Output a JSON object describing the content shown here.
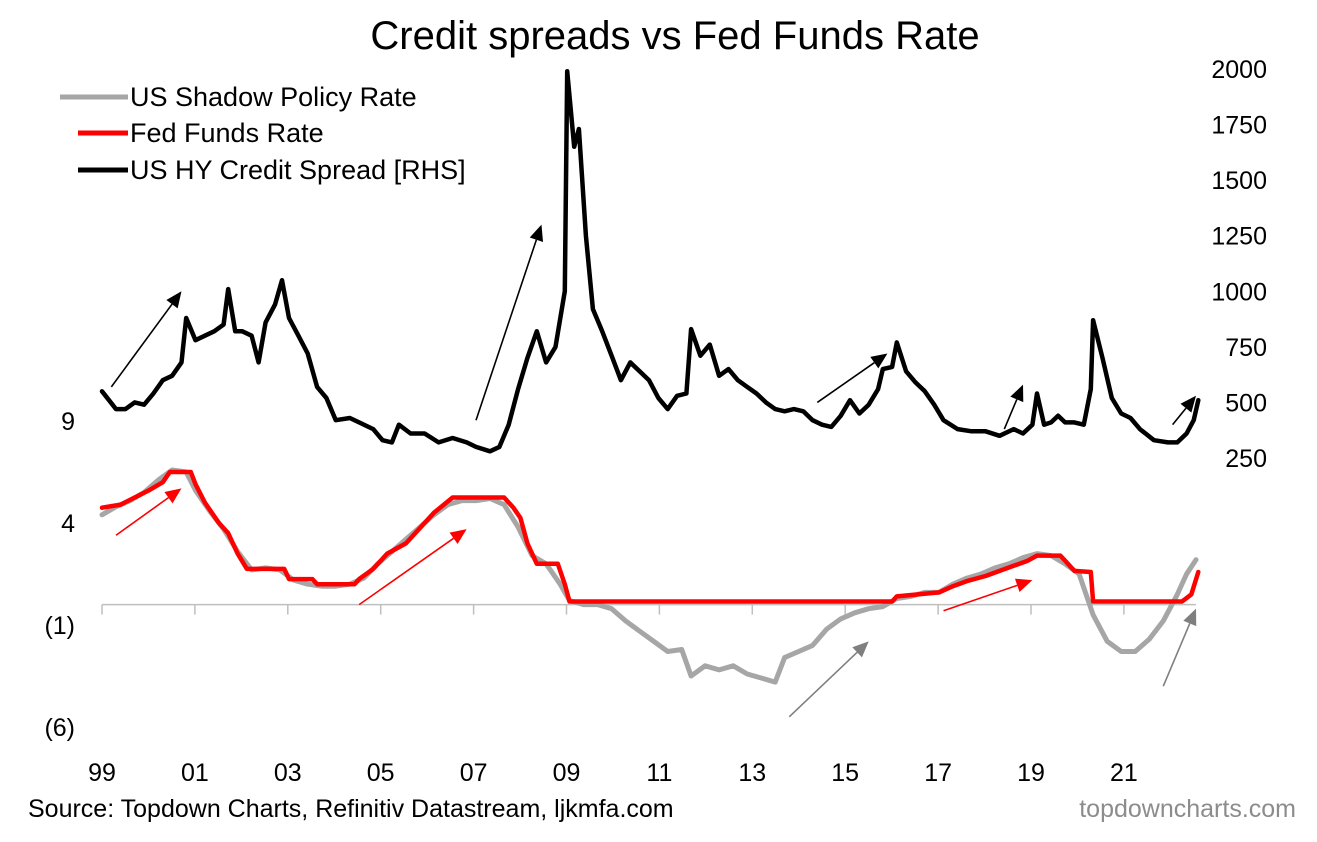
{
  "chart_data": {
    "type": "line",
    "title": "Credit spreads vs Fed Funds Rate",
    "source": "Source: Topdown Charts, Refinitiv Datastream, ljkmfa.com",
    "watermark": "topdowncharts.com",
    "x_ticks": [
      "99",
      "01",
      "03",
      "05",
      "07",
      "09",
      "11",
      "13",
      "15",
      "17",
      "19",
      "21"
    ],
    "x_range": [
      1999.0,
      2022.4
    ],
    "left_axis": {
      "ticks": [
        "9",
        "4",
        "(1)",
        "(6)"
      ],
      "tick_values": [
        9,
        4,
        -1,
        -6
      ],
      "range": [
        -6,
        9
      ]
    },
    "right_axis": {
      "ticks": [
        "2000",
        "1750",
        "1500",
        "1250",
        "1000",
        "750",
        "500",
        "250"
      ],
      "tick_values": [
        2000,
        1750,
        1500,
        1250,
        1000,
        750,
        500,
        250
      ],
      "range": [
        250,
        2000
      ]
    },
    "legend_position": "top-left",
    "colors": {
      "shadow": "#a6a6a6",
      "fed": "#ff0000",
      "hy": "#000000",
      "arrow_black": "#000000",
      "arrow_red": "#ff0000",
      "arrow_gray": "#7f7f7f"
    },
    "series": [
      {
        "name": "US Shadow Policy Rate",
        "axis": "left",
        "color": "#a6a6a6",
        "points": [
          [
            1999.0,
            4.4
          ],
          [
            1999.3,
            4.8
          ],
          [
            1999.6,
            5.1
          ],
          [
            1999.9,
            5.5
          ],
          [
            2000.2,
            6.1
          ],
          [
            2000.5,
            6.6
          ],
          [
            2000.8,
            6.5
          ],
          [
            2001.0,
            5.6
          ],
          [
            2001.3,
            4.6
          ],
          [
            2001.6,
            3.7
          ],
          [
            2001.9,
            2.6
          ],
          [
            2002.2,
            1.7
          ],
          [
            2002.5,
            1.8
          ],
          [
            2002.8,
            1.7
          ],
          [
            2003.1,
            1.2
          ],
          [
            2003.4,
            1.0
          ],
          [
            2003.7,
            0.9
          ],
          [
            2004.0,
            0.9
          ],
          [
            2004.3,
            1.0
          ],
          [
            2004.6,
            1.3
          ],
          [
            2004.9,
            2.0
          ],
          [
            2005.2,
            2.6
          ],
          [
            2005.5,
            3.2
          ],
          [
            2005.8,
            3.8
          ],
          [
            2006.1,
            4.4
          ],
          [
            2006.4,
            4.9
          ],
          [
            2006.7,
            5.1
          ],
          [
            2007.0,
            5.1
          ],
          [
            2007.3,
            5.2
          ],
          [
            2007.6,
            4.9
          ],
          [
            2007.9,
            3.8
          ],
          [
            2008.2,
            2.4
          ],
          [
            2008.5,
            2.0
          ],
          [
            2008.8,
            1.0
          ],
          [
            2009.0,
            0.2
          ],
          [
            2009.3,
            0.0
          ],
          [
            2009.6,
            0.0
          ],
          [
            2009.9,
            -0.2
          ],
          [
            2010.2,
            -0.8
          ],
          [
            2010.5,
            -1.3
          ],
          [
            2010.8,
            -1.8
          ],
          [
            2011.1,
            -2.3
          ],
          [
            2011.4,
            -2.2
          ],
          [
            2011.6,
            -3.5
          ],
          [
            2011.9,
            -3.0
          ],
          [
            2012.2,
            -3.2
          ],
          [
            2012.5,
            -3.0
          ],
          [
            2012.8,
            -3.4
          ],
          [
            2013.1,
            -3.6
          ],
          [
            2013.4,
            -3.8
          ],
          [
            2013.6,
            -2.6
          ],
          [
            2013.9,
            -2.3
          ],
          [
            2014.2,
            -2.0
          ],
          [
            2014.5,
            -1.2
          ],
          [
            2014.8,
            -0.7
          ],
          [
            2015.1,
            -0.4
          ],
          [
            2015.4,
            -0.2
          ],
          [
            2015.7,
            -0.1
          ],
          [
            2016.0,
            0.3
          ],
          [
            2016.3,
            0.4
          ],
          [
            2016.6,
            0.6
          ],
          [
            2016.9,
            0.6
          ],
          [
            2017.2,
            1.0
          ],
          [
            2017.5,
            1.3
          ],
          [
            2017.8,
            1.5
          ],
          [
            2018.1,
            1.8
          ],
          [
            2018.4,
            2.0
          ],
          [
            2018.7,
            2.3
          ],
          [
            2019.0,
            2.5
          ],
          [
            2019.3,
            2.4
          ],
          [
            2019.6,
            2.0
          ],
          [
            2019.9,
            1.5
          ],
          [
            2020.2,
            -0.5
          ],
          [
            2020.5,
            -1.8
          ],
          [
            2020.8,
            -2.3
          ],
          [
            2021.1,
            -2.3
          ],
          [
            2021.4,
            -1.7
          ],
          [
            2021.7,
            -0.8
          ],
          [
            2022.0,
            0.5
          ],
          [
            2022.2,
            1.5
          ],
          [
            2022.4,
            2.2
          ]
        ]
      },
      {
        "name": "Fed Funds Rate",
        "axis": "left",
        "color": "#ff0000",
        "points": [
          [
            1999.0,
            4.75
          ],
          [
            1999.4,
            4.9
          ],
          [
            1999.7,
            5.25
          ],
          [
            2000.0,
            5.6
          ],
          [
            2000.3,
            6.0
          ],
          [
            2000.45,
            6.5
          ],
          [
            2000.9,
            6.5
          ],
          [
            2001.0,
            5.9
          ],
          [
            2001.2,
            5.0
          ],
          [
            2001.5,
            4.0
          ],
          [
            2001.7,
            3.5
          ],
          [
            2001.9,
            2.5
          ],
          [
            2002.1,
            1.75
          ],
          [
            2002.9,
            1.75
          ],
          [
            2003.0,
            1.25
          ],
          [
            2003.5,
            1.25
          ],
          [
            2003.6,
            1.0
          ],
          [
            2004.4,
            1.0
          ],
          [
            2004.5,
            1.25
          ],
          [
            2004.8,
            1.75
          ],
          [
            2005.1,
            2.5
          ],
          [
            2005.5,
            3.0
          ],
          [
            2005.8,
            3.75
          ],
          [
            2006.1,
            4.5
          ],
          [
            2006.5,
            5.25
          ],
          [
            2007.6,
            5.25
          ],
          [
            2007.8,
            4.75
          ],
          [
            2007.95,
            4.25
          ],
          [
            2008.1,
            3.0
          ],
          [
            2008.3,
            2.0
          ],
          [
            2008.75,
            2.0
          ],
          [
            2008.9,
            1.0
          ],
          [
            2009.0,
            0.15
          ],
          [
            2015.9,
            0.15
          ],
          [
            2016.0,
            0.4
          ],
          [
            2016.9,
            0.6
          ],
          [
            2017.2,
            0.9
          ],
          [
            2017.5,
            1.15
          ],
          [
            2017.9,
            1.4
          ],
          [
            2018.2,
            1.65
          ],
          [
            2018.5,
            1.9
          ],
          [
            2018.8,
            2.15
          ],
          [
            2019.0,
            2.4
          ],
          [
            2019.5,
            2.4
          ],
          [
            2019.6,
            2.15
          ],
          [
            2019.8,
            1.65
          ],
          [
            2020.15,
            1.6
          ],
          [
            2020.2,
            0.15
          ],
          [
            2022.1,
            0.15
          ],
          [
            2022.3,
            0.5
          ],
          [
            2022.45,
            1.6
          ]
        ]
      },
      {
        "name": "US HY Credit Spread [RHS]",
        "axis": "right",
        "color": "#000000",
        "points": [
          [
            1999.0,
            550
          ],
          [
            1999.15,
            510
          ],
          [
            1999.3,
            470
          ],
          [
            1999.5,
            470
          ],
          [
            1999.7,
            500
          ],
          [
            1999.9,
            490
          ],
          [
            2000.1,
            540
          ],
          [
            2000.3,
            600
          ],
          [
            2000.5,
            620
          ],
          [
            2000.7,
            680
          ],
          [
            2000.8,
            880
          ],
          [
            2001.0,
            780
          ],
          [
            2001.2,
            800
          ],
          [
            2001.4,
            820
          ],
          [
            2001.6,
            850
          ],
          [
            2001.7,
            1010
          ],
          [
            2001.85,
            820
          ],
          [
            2002.0,
            820
          ],
          [
            2002.2,
            800
          ],
          [
            2002.35,
            680
          ],
          [
            2002.5,
            860
          ],
          [
            2002.7,
            940
          ],
          [
            2002.85,
            1050
          ],
          [
            2003.0,
            880
          ],
          [
            2003.2,
            800
          ],
          [
            2003.4,
            720
          ],
          [
            2003.6,
            570
          ],
          [
            2003.8,
            520
          ],
          [
            2004.0,
            420
          ],
          [
            2004.3,
            430
          ],
          [
            2004.5,
            410
          ],
          [
            2004.8,
            380
          ],
          [
            2005.0,
            330
          ],
          [
            2005.2,
            320
          ],
          [
            2005.35,
            400
          ],
          [
            2005.6,
            360
          ],
          [
            2005.9,
            360
          ],
          [
            2006.2,
            320
          ],
          [
            2006.5,
            340
          ],
          [
            2006.8,
            320
          ],
          [
            2007.0,
            300
          ],
          [
            2007.3,
            280
          ],
          [
            2007.5,
            300
          ],
          [
            2007.7,
            400
          ],
          [
            2007.9,
            560
          ],
          [
            2008.1,
            700
          ],
          [
            2008.3,
            820
          ],
          [
            2008.5,
            680
          ],
          [
            2008.7,
            750
          ],
          [
            2008.9,
            1000
          ],
          [
            2008.95,
            1990
          ],
          [
            2009.1,
            1650
          ],
          [
            2009.2,
            1730
          ],
          [
            2009.35,
            1250
          ],
          [
            2009.5,
            920
          ],
          [
            2009.7,
            820
          ],
          [
            2009.9,
            710
          ],
          [
            2010.1,
            600
          ],
          [
            2010.3,
            680
          ],
          [
            2010.5,
            640
          ],
          [
            2010.7,
            600
          ],
          [
            2010.9,
            520
          ],
          [
            2011.1,
            470
          ],
          [
            2011.3,
            530
          ],
          [
            2011.5,
            540
          ],
          [
            2011.6,
            830
          ],
          [
            2011.8,
            710
          ],
          [
            2012.0,
            760
          ],
          [
            2012.2,
            620
          ],
          [
            2012.4,
            650
          ],
          [
            2012.6,
            600
          ],
          [
            2012.8,
            570
          ],
          [
            2013.0,
            540
          ],
          [
            2013.2,
            500
          ],
          [
            2013.4,
            470
          ],
          [
            2013.6,
            460
          ],
          [
            2013.8,
            470
          ],
          [
            2014.0,
            460
          ],
          [
            2014.2,
            420
          ],
          [
            2014.4,
            400
          ],
          [
            2014.6,
            390
          ],
          [
            2014.8,
            440
          ],
          [
            2015.0,
            510
          ],
          [
            2015.2,
            450
          ],
          [
            2015.4,
            490
          ],
          [
            2015.6,
            560
          ],
          [
            2015.7,
            650
          ],
          [
            2015.9,
            660
          ],
          [
            2016.0,
            770
          ],
          [
            2016.2,
            640
          ],
          [
            2016.4,
            590
          ],
          [
            2016.6,
            550
          ],
          [
            2016.8,
            490
          ],
          [
            2017.0,
            420
          ],
          [
            2017.3,
            380
          ],
          [
            2017.6,
            370
          ],
          [
            2017.9,
            370
          ],
          [
            2018.2,
            350
          ],
          [
            2018.5,
            380
          ],
          [
            2018.7,
            360
          ],
          [
            2018.9,
            400
          ],
          [
            2019.0,
            540
          ],
          [
            2019.15,
            400
          ],
          [
            2019.3,
            410
          ],
          [
            2019.45,
            440
          ],
          [
            2019.6,
            410
          ],
          [
            2019.8,
            410
          ],
          [
            2020.0,
            400
          ],
          [
            2020.15,
            560
          ],
          [
            2020.2,
            870
          ],
          [
            2020.4,
            700
          ],
          [
            2020.6,
            520
          ],
          [
            2020.8,
            450
          ],
          [
            2021.0,
            430
          ],
          [
            2021.2,
            380
          ],
          [
            2021.5,
            330
          ],
          [
            2021.8,
            320
          ],
          [
            2022.0,
            320
          ],
          [
            2022.2,
            360
          ],
          [
            2022.35,
            420
          ],
          [
            2022.45,
            510
          ]
        ]
      }
    ],
    "arrows": [
      {
        "color_key": "arrow_black",
        "axis": "right",
        "from": [
          1999.2,
          570
        ],
        "to": [
          2000.7,
          1000
        ]
      },
      {
        "color_key": "arrow_black",
        "axis": "right",
        "from": [
          2007.0,
          420
        ],
        "to": [
          2008.4,
          1300
        ]
      },
      {
        "color_key": "arrow_black",
        "axis": "right",
        "from": [
          2014.3,
          500
        ],
        "to": [
          2015.8,
          720
        ]
      },
      {
        "color_key": "arrow_black",
        "axis": "right",
        "from": [
          2018.3,
          380
        ],
        "to": [
          2018.7,
          580
        ]
      },
      {
        "color_key": "arrow_black",
        "axis": "right",
        "from": [
          2021.9,
          400
        ],
        "to": [
          2022.4,
          530
        ]
      },
      {
        "color_key": "arrow_red",
        "axis": "left",
        "from": [
          1999.3,
          3.4
        ],
        "to": [
          2000.7,
          5.7
        ]
      },
      {
        "color_key": "arrow_red",
        "axis": "left",
        "from": [
          2004.5,
          0.0
        ],
        "to": [
          2006.8,
          3.7
        ]
      },
      {
        "color_key": "arrow_red",
        "axis": "left",
        "from": [
          2017.0,
          -0.3
        ],
        "to": [
          2018.9,
          1.2
        ]
      },
      {
        "color_key": "arrow_gray",
        "axis": "left",
        "from": [
          2013.7,
          -5.5
        ],
        "to": [
          2015.4,
          -1.8
        ]
      },
      {
        "color_key": "arrow_gray",
        "axis": "left",
        "from": [
          2021.7,
          -4.0
        ],
        "to": [
          2022.4,
          -0.2
        ]
      }
    ]
  }
}
